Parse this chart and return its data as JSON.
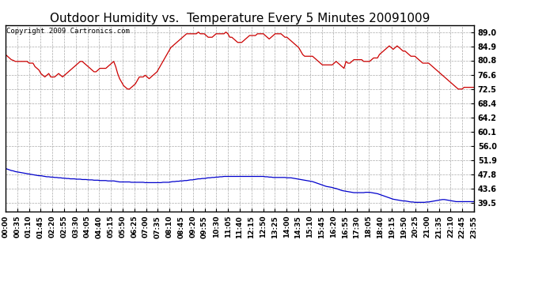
{
  "title": "Outdoor Humidity vs.  Temperature Every 5 Minutes 20091009",
  "copyright_text": "Copyright 2009 Cartronics.com",
  "background_color": "#ffffff",
  "plot_bg_color": "#ffffff",
  "grid_color": "#aaaaaa",
  "line_color_humidity": "#cc0000",
  "line_color_temp": "#0000cc",
  "yticks": [
    39.5,
    43.6,
    47.8,
    51.9,
    56.0,
    60.1,
    64.2,
    68.4,
    72.5,
    76.6,
    80.8,
    84.9,
    89.0
  ],
  "ylim": [
    37.0,
    91.0
  ],
  "title_fontsize": 11,
  "copyright_fontsize": 6.5,
  "tick_fontsize": 7,
  "humidity_data": [
    82.5,
    82.0,
    81.5,
    81.0,
    80.8,
    80.5,
    80.5,
    80.5,
    80.5,
    80.5,
    80.5,
    80.5,
    80.0,
    80.0,
    80.0,
    79.0,
    78.5,
    78.0,
    77.0,
    76.5,
    76.0,
    76.5,
    77.0,
    76.0,
    76.0,
    76.0,
    76.5,
    77.0,
    76.5,
    76.0,
    76.5,
    77.0,
    77.5,
    78.0,
    78.5,
    79.0,
    79.5,
    80.0,
    80.5,
    80.5,
    80.0,
    79.5,
    79.0,
    78.5,
    78.0,
    77.5,
    77.5,
    78.0,
    78.5,
    78.5,
    78.5,
    78.5,
    79.0,
    79.5,
    80.0,
    80.5,
    79.0,
    77.0,
    75.5,
    74.5,
    73.5,
    73.0,
    72.5,
    72.5,
    73.0,
    73.5,
    74.0,
    75.0,
    76.0,
    76.0,
    76.0,
    76.5,
    76.0,
    75.5,
    76.0,
    76.5,
    77.0,
    77.5,
    78.5,
    79.5,
    80.5,
    81.5,
    82.5,
    83.5,
    84.5,
    85.0,
    85.5,
    86.0,
    86.5,
    87.0,
    87.5,
    88.0,
    88.5,
    88.5,
    88.5,
    88.5,
    88.5,
    88.5,
    89.0,
    88.5,
    88.5,
    88.5,
    88.0,
    87.5,
    87.5,
    87.5,
    88.0,
    88.5,
    88.5,
    88.5,
    88.5,
    88.5,
    89.0,
    88.5,
    87.5,
    87.5,
    87.0,
    86.5,
    86.0,
    86.0,
    86.0,
    86.5,
    87.0,
    87.5,
    88.0,
    88.0,
    88.0,
    88.0,
    88.5,
    88.5,
    88.5,
    88.5,
    88.0,
    87.5,
    87.0,
    87.5,
    88.0,
    88.5,
    88.5,
    88.5,
    88.5,
    88.0,
    87.5,
    87.5,
    87.0,
    86.5,
    86.0,
    85.5,
    85.0,
    84.5,
    83.5,
    82.5,
    82.0,
    82.0,
    82.0,
    82.0,
    82.0,
    81.5,
    81.0,
    80.5,
    80.0,
    79.5,
    79.5,
    79.5,
    79.5,
    79.5,
    79.5,
    80.0,
    80.5,
    80.0,
    79.5,
    79.0,
    78.5,
    80.5,
    80.0,
    80.0,
    80.5,
    81.0,
    81.0,
    81.0,
    81.0,
    81.0,
    80.5,
    80.5,
    80.5,
    80.5,
    81.0,
    81.5,
    81.5,
    81.5,
    82.5,
    83.0,
    83.5,
    84.0,
    84.5,
    85.0,
    84.5,
    84.0,
    84.5,
    85.0,
    84.5,
    84.0,
    83.5,
    83.5,
    83.0,
    82.5,
    82.0,
    82.0,
    82.0,
    81.5,
    81.0,
    80.5,
    80.0,
    80.0,
    80.0,
    80.0,
    79.5,
    79.0,
    78.5,
    78.0,
    77.5,
    77.0,
    76.5,
    76.0,
    75.5,
    75.0,
    74.5,
    74.0,
    73.5,
    73.0,
    72.5,
    72.5,
    72.5,
    73.0,
    73.0,
    73.0,
    73.0,
    73.0,
    73.0
  ],
  "temp_data": [
    49.5,
    49.3,
    49.1,
    48.9,
    48.8,
    48.6,
    48.5,
    48.4,
    48.3,
    48.2,
    48.1,
    48.0,
    47.9,
    47.8,
    47.7,
    47.6,
    47.5,
    47.4,
    47.4,
    47.3,
    47.2,
    47.1,
    47.1,
    47.0,
    47.0,
    46.9,
    46.9,
    46.8,
    46.8,
    46.7,
    46.7,
    46.6,
    46.6,
    46.5,
    46.5,
    46.5,
    46.4,
    46.4,
    46.4,
    46.3,
    46.3,
    46.3,
    46.2,
    46.2,
    46.2,
    46.1,
    46.1,
    46.1,
    46.0,
    46.0,
    46.0,
    46.0,
    45.9,
    45.9,
    45.9,
    45.9,
    45.8,
    45.7,
    45.6,
    45.6,
    45.6,
    45.6,
    45.6,
    45.6,
    45.5,
    45.5,
    45.5,
    45.5,
    45.5,
    45.5,
    45.5,
    45.4,
    45.4,
    45.4,
    45.4,
    45.4,
    45.4,
    45.4,
    45.4,
    45.4,
    45.5,
    45.5,
    45.5,
    45.5,
    45.6,
    45.7,
    45.7,
    45.8,
    45.8,
    45.9,
    45.9,
    46.0,
    46.0,
    46.1,
    46.2,
    46.2,
    46.3,
    46.4,
    46.5,
    46.5,
    46.6,
    46.6,
    46.7,
    46.8,
    46.8,
    46.9,
    46.9,
    47.0,
    47.0,
    47.1,
    47.1,
    47.2,
    47.2,
    47.2,
    47.2,
    47.2,
    47.2,
    47.2,
    47.2,
    47.2,
    47.2,
    47.2,
    47.2,
    47.2,
    47.2,
    47.2,
    47.2,
    47.2,
    47.2,
    47.2,
    47.2,
    47.2,
    47.1,
    47.1,
    47.0,
    47.0,
    46.9,
    46.9,
    46.9,
    46.9,
    46.9,
    46.9,
    46.9,
    46.8,
    46.8,
    46.8,
    46.7,
    46.6,
    46.5,
    46.4,
    46.3,
    46.2,
    46.1,
    46.0,
    45.9,
    45.8,
    45.7,
    45.5,
    45.3,
    45.1,
    44.9,
    44.7,
    44.5,
    44.3,
    44.2,
    44.1,
    44.0,
    43.8,
    43.7,
    43.5,
    43.3,
    43.1,
    43.0,
    42.9,
    42.8,
    42.7,
    42.6,
    42.5,
    42.5,
    42.5,
    42.5,
    42.5,
    42.5,
    42.6,
    42.6,
    42.6,
    42.5,
    42.4,
    42.3,
    42.2,
    42.0,
    41.8,
    41.6,
    41.4,
    41.2,
    41.0,
    40.8,
    40.6,
    40.5,
    40.4,
    40.3,
    40.2,
    40.1,
    40.1,
    40.0,
    39.9,
    39.8,
    39.8,
    39.7,
    39.7,
    39.7,
    39.7,
    39.7,
    39.7,
    39.8,
    39.8,
    39.9,
    40.0,
    40.1,
    40.2,
    40.3,
    40.4,
    40.5,
    40.5,
    40.4,
    40.3,
    40.2,
    40.1,
    40.0,
    39.9,
    39.9,
    39.9,
    39.9,
    39.9,
    39.9,
    39.9,
    39.9,
    39.9,
    39.9
  ],
  "xtick_labels": [
    "00:00",
    "00:35",
    "01:10",
    "01:45",
    "02:20",
    "02:55",
    "03:30",
    "04:05",
    "04:40",
    "05:15",
    "05:50",
    "06:25",
    "07:00",
    "07:35",
    "08:10",
    "08:45",
    "09:20",
    "09:55",
    "10:30",
    "11:05",
    "11:40",
    "12:15",
    "12:50",
    "13:25",
    "14:00",
    "14:35",
    "15:10",
    "15:45",
    "16:20",
    "16:55",
    "17:30",
    "18:05",
    "18:40",
    "19:15",
    "19:50",
    "20:25",
    "21:00",
    "21:35",
    "22:10",
    "22:45",
    "23:55"
  ]
}
